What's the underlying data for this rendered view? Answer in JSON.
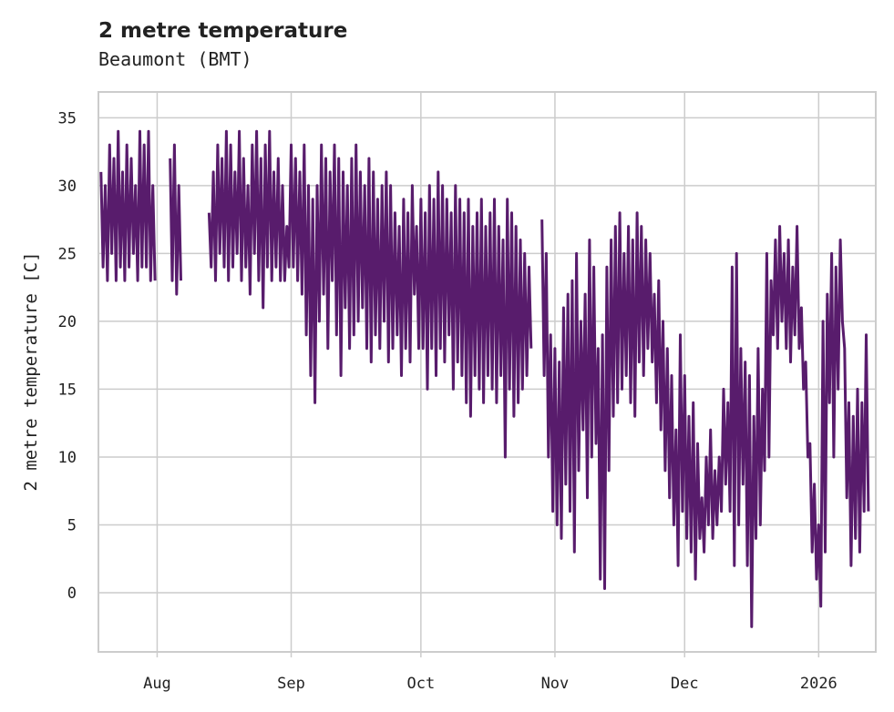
{
  "chart_data": {
    "type": "line",
    "title": "2 metre temperature",
    "subtitle": "Beaumont (BMT)",
    "xlabel": "",
    "ylabel": "2 metre temperature [C]",
    "x_start": "2025-07-19T00:00",
    "x_step_hours": 12,
    "xlim": [
      "2025-07-18T10:00",
      "2026-01-14T05:00"
    ],
    "ylim": [
      -4.36,
      36.9
    ],
    "grid": true,
    "line_color": "#581c6c",
    "x_ticks": [
      {
        "label": "Aug",
        "date": "2025-08-01"
      },
      {
        "label": "Sep",
        "date": "2025-09-01"
      },
      {
        "label": "Oct",
        "date": "2025-10-01"
      },
      {
        "label": "Nov",
        "date": "2025-11-01"
      },
      {
        "label": "Dec",
        "date": "2025-12-01"
      },
      {
        "label": "2026",
        "date": "2026-01-01"
      }
    ],
    "y_ticks": [
      {
        "label": "0",
        "value": 0
      },
      {
        "label": "5",
        "value": 5
      },
      {
        "label": "10",
        "value": 10
      },
      {
        "label": "15",
        "value": 15
      },
      {
        "label": "20",
        "value": 20
      },
      {
        "label": "25",
        "value": 25
      },
      {
        "label": "30",
        "value": 30
      },
      {
        "label": "35",
        "value": 35
      }
    ],
    "series": [
      {
        "name": "2 metre temperature",
        "values": [
          31,
          24,
          30,
          23,
          33,
          25,
          32,
          23,
          34,
          24,
          31,
          23,
          33,
          24,
          32,
          25,
          30,
          23,
          34,
          24,
          33,
          24,
          34,
          23,
          30,
          23,
          null,
          null,
          null,
          null,
          null,
          null,
          32,
          23,
          33,
          22,
          30,
          23,
          null,
          null,
          null,
          null,
          null,
          null,
          null,
          null,
          null,
          null,
          null,
          null,
          28,
          24,
          31,
          23,
          33,
          25,
          32,
          24,
          34,
          23,
          33,
          24,
          31,
          25,
          34,
          23,
          32,
          24,
          30,
          22,
          33,
          25,
          34,
          23,
          32,
          21,
          33,
          24,
          34,
          23,
          31,
          24,
          32,
          23,
          30,
          23,
          27,
          24,
          33,
          24,
          32,
          23,
          31,
          22,
          33,
          19,
          30,
          16,
          29,
          14,
          30,
          20,
          33,
          22,
          32,
          18,
          31,
          23,
          33,
          19,
          32,
          16,
          31,
          21,
          30,
          18,
          32,
          19,
          33,
          20,
          31,
          21,
          30,
          18,
          32,
          17,
          31,
          19,
          29,
          18,
          30,
          20,
          31,
          17,
          30,
          18,
          28,
          19,
          27,
          16,
          29,
          18,
          28,
          17,
          30,
          22,
          27,
          18,
          29,
          18,
          28,
          15,
          30,
          18,
          29,
          16,
          31,
          18,
          30,
          17,
          29,
          19,
          28,
          15,
          30,
          17,
          29,
          16,
          28,
          14,
          29,
          13,
          27,
          16,
          28,
          15,
          29,
          14,
          27,
          16,
          28,
          15,
          29,
          14,
          27,
          16,
          26,
          10,
          29,
          15,
          28,
          13,
          27,
          14,
          26,
          15,
          25,
          16,
          24,
          18,
          null,
          null,
          null,
          null,
          27.5,
          16,
          25,
          10,
          19,
          6,
          18,
          5,
          17,
          4,
          21,
          8,
          22,
          6,
          23,
          3,
          25,
          9,
          20,
          12,
          22,
          7,
          26,
          10,
          24,
          11,
          18,
          1,
          19,
          0.3,
          24,
          9,
          26,
          13,
          27,
          14,
          28,
          15,
          25,
          16,
          27,
          14,
          26,
          13,
          28,
          17,
          27,
          16,
          26,
          18,
          25,
          17,
          22,
          14,
          23,
          12,
          20,
          9,
          18,
          7,
          16,
          5,
          12,
          2,
          19,
          6,
          16,
          4,
          13,
          3,
          14,
          1,
          11,
          4,
          7,
          3,
          10,
          5,
          12,
          4,
          9,
          5,
          10,
          6,
          15,
          8,
          14,
          6,
          24,
          2,
          25,
          5,
          18,
          8,
          17,
          2,
          16,
          -2.5,
          13,
          4,
          18,
          5,
          15,
          9,
          25,
          10,
          23,
          19,
          26,
          18,
          27,
          20,
          25,
          18,
          26,
          17,
          24,
          19,
          27,
          18,
          21,
          15,
          17,
          10,
          11,
          3,
          8,
          1,
          5,
          -1,
          20,
          3,
          22,
          14,
          25,
          10,
          24,
          15,
          26,
          20,
          18,
          7,
          14,
          2,
          13,
          4,
          15,
          3,
          14,
          6,
          19,
          6
        ]
      }
    ]
  }
}
